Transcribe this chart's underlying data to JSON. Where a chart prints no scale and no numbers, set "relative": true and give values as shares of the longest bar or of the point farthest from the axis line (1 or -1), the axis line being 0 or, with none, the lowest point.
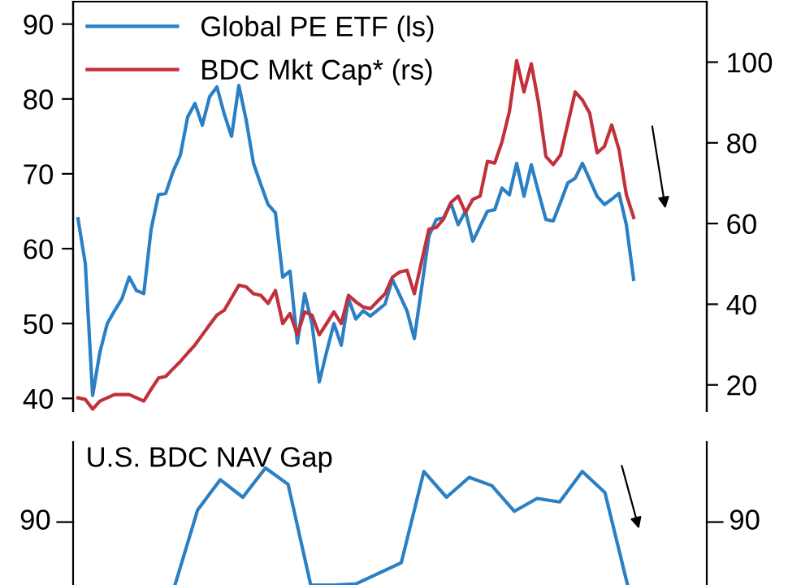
{
  "chart_data": [
    {
      "type": "line",
      "legend": "top left",
      "tick_labels": "y",
      "grid": false,
      "ylim": [
        38.3,
        93
      ],
      "yticks": [
        40,
        50,
        60,
        70,
        80,
        90
      ],
      "y2lim": [
        13.5,
        115
      ],
      "y2ticks": [
        20,
        40,
        60,
        80,
        100
      ],
      "categories": [
        null,
        null,
        null,
        null,
        null,
        null,
        null,
        null,
        null,
        null,
        null,
        null,
        null,
        null,
        null,
        null,
        null,
        null,
        null,
        null,
        null,
        null,
        null,
        null,
        null,
        null,
        null,
        null,
        null,
        null,
        null,
        null,
        null,
        null,
        null,
        null,
        null,
        null,
        null,
        null,
        null,
        null,
        null,
        null,
        null,
        null,
        null,
        null,
        null,
        null,
        null,
        null,
        null,
        null,
        null,
        null,
        null,
        null,
        null,
        null,
        null,
        null,
        null,
        null,
        null,
        null,
        null,
        null,
        null,
        null,
        null,
        null,
        null,
        null,
        null,
        null,
        null
      ],
      "series": [
        {
          "name": "Global PE ETF (ls)",
          "color": "#2b7fc3",
          "values": [
            64,
            58,
            40.4,
            46.2,
            50,
            51.7,
            53.3,
            56.2,
            54.4,
            54,
            62.6,
            67.2,
            67.4,
            70.3,
            72.5,
            77.6,
            79.4,
            76.5,
            80.3,
            81.6,
            78,
            75,
            81.8,
            77.2,
            71.4,
            68.6,
            65.9,
            64.8,
            56.2,
            57,
            47.4,
            54,
            50,
            42.2,
            46.2,
            50,
            47.1,
            53.3,
            50.6,
            51.7,
            51,
            51.8,
            52.6,
            55.9,
            53.8,
            51.7,
            48,
            54.8,
            61.7,
            63.9,
            64.1,
            66.1,
            63.2,
            65,
            61,
            63,
            65,
            65.2,
            68.1,
            67.2,
            71.4,
            67,
            71.2,
            67.5,
            63.9,
            63.7,
            66.2,
            68.8,
            69.4,
            71.4,
            69.2,
            67,
            65.9,
            66.6,
            67.4,
            63.2,
            55.9
          ]
        },
        {
          "name": "BDC Mkt Cap* (rs)",
          "color": "#c1303b",
          "axis": "y2",
          "values": [
            16.8,
            16.4,
            14,
            16,
            16.8,
            17.6,
            17.6,
            17.6,
            16.8,
            16,
            18.9,
            21.7,
            22.1,
            24,
            25.8,
            27.9,
            29.9,
            32.4,
            34.9,
            37.3,
            38.5,
            41.6,
            44.7,
            44.3,
            42.6,
            42.2,
            40.2,
            43.4,
            35.2,
            37.7,
            32.4,
            38.1,
            37.3,
            32.4,
            35.2,
            38.1,
            35.2,
            42.2,
            40.6,
            39.3,
            38.9,
            40.8,
            42.6,
            46.7,
            48,
            48.4,
            42.6,
            50.6,
            58.6,
            59,
            61.1,
            65.2,
            66.8,
            62.7,
            66,
            66.8,
            75.4,
            75,
            80.3,
            87.7,
            100.4,
            92.6,
            99.6,
            89.8,
            76.6,
            74.6,
            77,
            84.8,
            92.6,
            90.6,
            87.3,
            77.5,
            79.1,
            84.4,
            78.3,
            67.2,
            61.5
          ]
        }
      ]
    },
    {
      "type": "line",
      "relative": true,
      "title": "U.S. BDC NAV Gap",
      "annotations": [
        "90",
        "90"
      ],
      "categories": [
        null,
        null,
        null,
        null,
        null,
        null,
        null,
        null,
        null,
        null,
        null,
        null,
        null,
        null,
        null,
        null,
        null,
        null,
        null,
        null,
        null,
        null,
        null,
        null,
        null,
        null,
        null,
        null
      ],
      "series": [
        {
          "color": "#2b7fc3",
          "values": [
            null,
            null,
            null,
            null,
            0,
            0.64,
            0.9,
            0.75,
            1.0,
            0.86,
            0,
            0,
            0.01,
            0.1,
            0.19,
            0.97,
            0.75,
            0.92,
            0.85,
            0.63,
            0.74,
            0.71,
            0.97,
            0.79,
            0,
            null,
            null,
            null
          ]
        }
      ]
    }
  ]
}
